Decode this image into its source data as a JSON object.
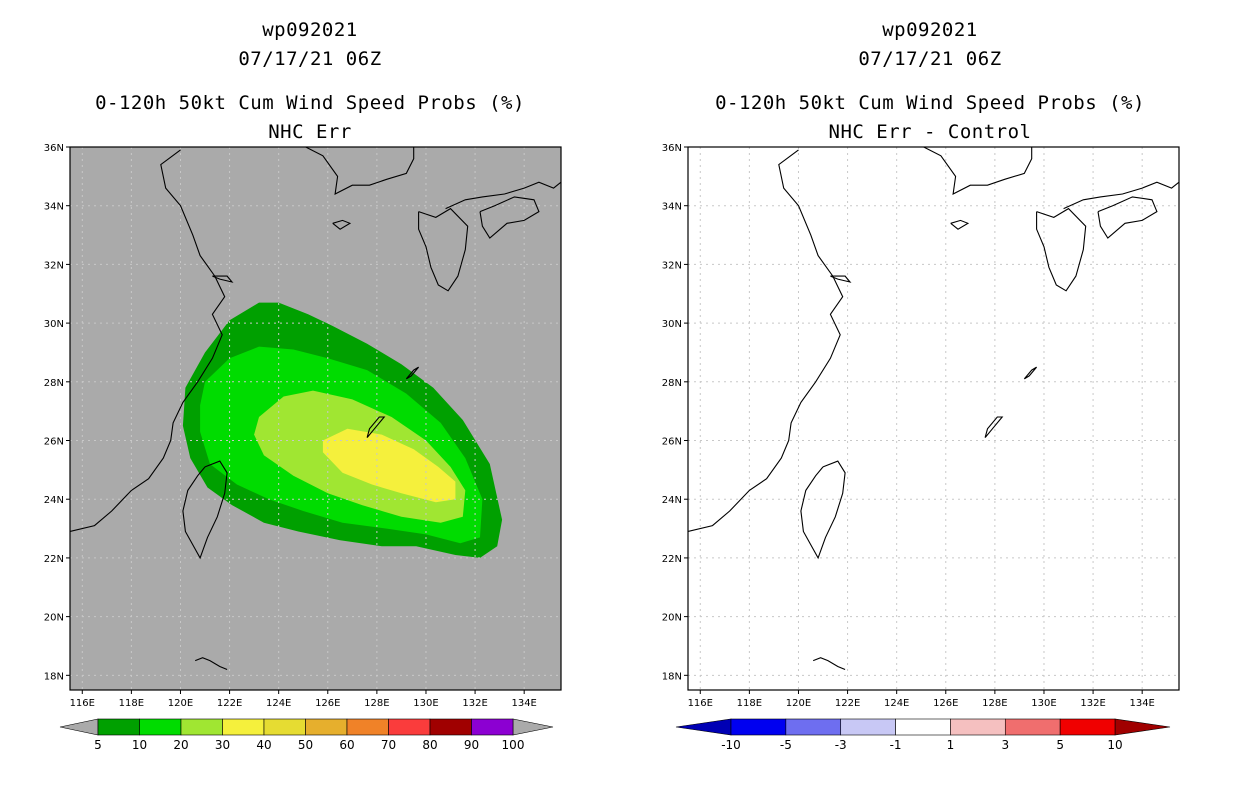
{
  "panels": [
    {
      "storm": "wp092021",
      "datetime": "07/17/21 06Z",
      "title": "0-120h 50kt Cum Wind Speed Probs (%)",
      "subtitle": "NHC Err",
      "background": "#aaaaaa"
    },
    {
      "storm": "wp092021",
      "datetime": "07/17/21 06Z",
      "title": "0-120h 50kt Cum Wind Speed Probs (%)",
      "subtitle": "NHC Err - Control",
      "background": "#ffffff"
    }
  ],
  "chart_data": [
    {
      "type": "heatmap",
      "panel": "left",
      "title": "0-120h 50kt Cum Wind Speed Probs (%)",
      "subtitle": "NHC Err",
      "xlim": [
        115.5,
        135.5
      ],
      "ylim": [
        17.5,
        36
      ],
      "x_ticks": [
        {
          "v": 116,
          "label": "116E"
        },
        {
          "v": 118,
          "label": "118E"
        },
        {
          "v": 120,
          "label": "120E"
        },
        {
          "v": 122,
          "label": "122E"
        },
        {
          "v": 124,
          "label": "124E"
        },
        {
          "v": 126,
          "label": "126E"
        },
        {
          "v": 128,
          "label": "128E"
        },
        {
          "v": 130,
          "label": "130E"
        },
        {
          "v": 132,
          "label": "132E"
        },
        {
          "v": 134,
          "label": "134E"
        }
      ],
      "y_ticks": [
        {
          "v": 18,
          "label": "18N"
        },
        {
          "v": 20,
          "label": "20N"
        },
        {
          "v": 22,
          "label": "22N"
        },
        {
          "v": 24,
          "label": "24N"
        },
        {
          "v": 26,
          "label": "26N"
        },
        {
          "v": 28,
          "label": "28N"
        },
        {
          "v": 30,
          "label": "30N"
        },
        {
          "v": 32,
          "label": "32N"
        },
        {
          "v": 34,
          "label": "34N"
        },
        {
          "v": 36,
          "label": "36N"
        }
      ],
      "grid": true,
      "contours": [
        {
          "level": "5",
          "color": "#00a000",
          "poly": [
            [
              120.2,
              27.8
            ],
            [
              121.0,
              29.0
            ],
            [
              122.0,
              30.1
            ],
            [
              123.2,
              30.7
            ],
            [
              124.0,
              30.7
            ],
            [
              125.2,
              30.3
            ],
            [
              126.2,
              29.9
            ],
            [
              127.6,
              29.3
            ],
            [
              129.0,
              28.6
            ],
            [
              130.3,
              27.8
            ],
            [
              131.5,
              26.7
            ],
            [
              132.6,
              25.2
            ],
            [
              133.1,
              23.3
            ],
            [
              132.9,
              22.4
            ],
            [
              132.2,
              22.0
            ],
            [
              131.2,
              22.1
            ],
            [
              129.6,
              22.4
            ],
            [
              128.2,
              22.4
            ],
            [
              126.5,
              22.6
            ],
            [
              124.8,
              22.9
            ],
            [
              123.4,
              23.2
            ],
            [
              122.1,
              23.8
            ],
            [
              121.1,
              24.4
            ],
            [
              120.4,
              25.4
            ],
            [
              120.1,
              26.5
            ]
          ]
        },
        {
          "level": "10",
          "color": "#00dc00",
          "poly": [
            [
              121.0,
              28.0
            ],
            [
              122.0,
              28.8
            ],
            [
              123.2,
              29.2
            ],
            [
              124.6,
              29.1
            ],
            [
              126.0,
              28.8
            ],
            [
              127.6,
              28.4
            ],
            [
              129.2,
              27.6
            ],
            [
              130.6,
              26.6
            ],
            [
              131.6,
              25.4
            ],
            [
              132.3,
              24.0
            ],
            [
              132.2,
              22.7
            ],
            [
              131.4,
              22.5
            ],
            [
              130.0,
              22.8
            ],
            [
              128.4,
              23.0
            ],
            [
              126.6,
              23.2
            ],
            [
              125.0,
              23.6
            ],
            [
              123.6,
              24.0
            ],
            [
              122.3,
              24.5
            ],
            [
              121.2,
              25.2
            ],
            [
              120.8,
              26.3
            ],
            [
              120.8,
              27.2
            ]
          ]
        },
        {
          "level": "20",
          "color": "#a0e632",
          "poly": [
            [
              123.2,
              26.8
            ],
            [
              124.2,
              27.5
            ],
            [
              125.4,
              27.7
            ],
            [
              127.0,
              27.4
            ],
            [
              128.6,
              26.8
            ],
            [
              130.0,
              26.0
            ],
            [
              131.0,
              25.1
            ],
            [
              131.6,
              24.3
            ],
            [
              131.5,
              23.4
            ],
            [
              130.6,
              23.2
            ],
            [
              129.0,
              23.4
            ],
            [
              127.4,
              23.8
            ],
            [
              126.0,
              24.2
            ],
            [
              124.6,
              24.8
            ],
            [
              123.4,
              25.5
            ],
            [
              123.0,
              26.2
            ]
          ]
        },
        {
          "level": "30",
          "color": "#f5f03c",
          "poly": [
            [
              125.8,
              26.0
            ],
            [
              126.8,
              26.4
            ],
            [
              128.2,
              26.2
            ],
            [
              129.5,
              25.7
            ],
            [
              130.5,
              25.1
            ],
            [
              131.2,
              24.6
            ],
            [
              131.2,
              24.0
            ],
            [
              130.4,
              23.9
            ],
            [
              129.0,
              24.2
            ],
            [
              127.8,
              24.5
            ],
            [
              126.6,
              24.9
            ],
            [
              125.8,
              25.6
            ]
          ]
        }
      ],
      "colorbar": {
        "labels": [
          "5",
          "10",
          "20",
          "30",
          "40",
          "50",
          "60",
          "70",
          "80",
          "90",
          "100"
        ],
        "colors": [
          "#00a000",
          "#00dc00",
          "#a0e632",
          "#f5f03c",
          "#e6dc32",
          "#e6af2d",
          "#f08228",
          "#fa3c3c",
          "#a00000",
          "#8c00d2"
        ]
      }
    },
    {
      "type": "heatmap",
      "panel": "right",
      "title": "0-120h 50kt Cum Wind Speed Probs (%)",
      "subtitle": "NHC Err - Control",
      "xlim": [
        115.5,
        135.5
      ],
      "ylim": [
        17.5,
        36
      ],
      "x_ticks": [
        {
          "v": 116,
          "label": "116E"
        },
        {
          "v": 118,
          "label": "118E"
        },
        {
          "v": 120,
          "label": "120E"
        },
        {
          "v": 122,
          "label": "122E"
        },
        {
          "v": 124,
          "label": "124E"
        },
        {
          "v": 126,
          "label": "126E"
        },
        {
          "v": 128,
          "label": "128E"
        },
        {
          "v": 130,
          "label": "130E"
        },
        {
          "v": 132,
          "label": "132E"
        },
        {
          "v": 134,
          "label": "134E"
        }
      ],
      "y_ticks": [
        {
          "v": 18,
          "label": "18N"
        },
        {
          "v": 20,
          "label": "20N"
        },
        {
          "v": 22,
          "label": "22N"
        },
        {
          "v": 24,
          "label": "24N"
        },
        {
          "v": 26,
          "label": "26N"
        },
        {
          "v": 28,
          "label": "28N"
        },
        {
          "v": 30,
          "label": "30N"
        },
        {
          "v": 32,
          "label": "32N"
        },
        {
          "v": 34,
          "label": "34N"
        },
        {
          "v": 36,
          "label": "36N"
        }
      ],
      "grid": true,
      "contours": [],
      "colorbar": {
        "labels": [
          "-10",
          "-5",
          "-3",
          "-1",
          "1",
          "3",
          "5",
          "10"
        ],
        "colors": [
          "#0000b4",
          "#0000f0",
          "#6e6ef0",
          "#c8c8f5",
          "#ffffff",
          "#f5c0c0",
          "#f06e6e",
          "#f00000",
          "#a00000"
        ]
      }
    }
  ],
  "coastline": {
    "china": [
      [
        115.5,
        22.9
      ],
      [
        116.5,
        23.1
      ],
      [
        117.2,
        23.6
      ],
      [
        118.0,
        24.3
      ],
      [
        118.7,
        24.7
      ],
      [
        119.3,
        25.4
      ],
      [
        119.6,
        26.0
      ],
      [
        119.7,
        26.6
      ],
      [
        120.1,
        27.3
      ],
      [
        120.7,
        28.0
      ],
      [
        121.3,
        28.8
      ],
      [
        121.7,
        29.6
      ],
      [
        121.3,
        30.3
      ],
      [
        121.8,
        30.9
      ],
      [
        121.4,
        31.6
      ],
      [
        120.8,
        32.3
      ],
      [
        120.5,
        33.0
      ],
      [
        120.0,
        34.0
      ],
      [
        119.4,
        34.6
      ],
      [
        119.2,
        35.4
      ],
      [
        120.0,
        35.9
      ]
    ],
    "korea": [
      [
        125.1,
        36.0
      ],
      [
        125.8,
        35.7
      ],
      [
        126.4,
        35.0
      ],
      [
        126.3,
        34.4
      ],
      [
        127.0,
        34.7
      ],
      [
        127.7,
        34.7
      ],
      [
        128.4,
        34.9
      ],
      [
        129.2,
        35.1
      ],
      [
        129.5,
        35.6
      ],
      [
        129.5,
        36.0
      ]
    ],
    "japan_main": [
      [
        130.8,
        33.9
      ],
      [
        131.6,
        34.2
      ],
      [
        132.3,
        34.3
      ],
      [
        133.2,
        34.4
      ],
      [
        134.0,
        34.6
      ],
      [
        134.6,
        34.8
      ],
      [
        135.2,
        34.6
      ],
      [
        135.5,
        34.8
      ]
    ],
    "kyushu": [
      [
        129.7,
        33.8
      ],
      [
        130.4,
        33.6
      ],
      [
        131.0,
        33.9
      ],
      [
        131.7,
        33.3
      ],
      [
        131.6,
        32.5
      ],
      [
        131.3,
        31.6
      ],
      [
        130.9,
        31.1
      ],
      [
        130.5,
        31.3
      ],
      [
        130.2,
        31.9
      ],
      [
        130.0,
        32.6
      ],
      [
        129.7,
        33.2
      ],
      [
        129.7,
        33.8
      ]
    ],
    "shikoku": [
      [
        132.2,
        33.8
      ],
      [
        132.8,
        34.0
      ],
      [
        133.6,
        34.3
      ],
      [
        134.4,
        34.2
      ],
      [
        134.6,
        33.8
      ],
      [
        134.0,
        33.5
      ],
      [
        133.3,
        33.4
      ],
      [
        132.6,
        32.9
      ],
      [
        132.3,
        33.3
      ],
      [
        132.2,
        33.8
      ]
    ],
    "taiwan": [
      [
        121.0,
        25.1
      ],
      [
        121.6,
        25.3
      ],
      [
        121.9,
        24.9
      ],
      [
        121.8,
        24.2
      ],
      [
        121.5,
        23.4
      ],
      [
        121.1,
        22.7
      ],
      [
        120.8,
        22.0
      ],
      [
        120.6,
        22.3
      ],
      [
        120.2,
        22.9
      ],
      [
        120.1,
        23.6
      ],
      [
        120.3,
        24.3
      ],
      [
        120.7,
        24.8
      ],
      [
        121.0,
        25.1
      ]
    ],
    "okinawa": [
      [
        127.6,
        26.1
      ],
      [
        127.9,
        26.4
      ],
      [
        128.3,
        26.8
      ],
      [
        128.1,
        26.8
      ],
      [
        127.7,
        26.4
      ],
      [
        127.6,
        26.1
      ]
    ],
    "amami": [
      [
        129.2,
        28.1
      ],
      [
        129.5,
        28.4
      ],
      [
        129.7,
        28.5
      ],
      [
        129.4,
        28.2
      ],
      [
        129.2,
        28.1
      ]
    ],
    "jeju": [
      [
        126.2,
        33.4
      ],
      [
        126.6,
        33.5
      ],
      [
        126.9,
        33.4
      ],
      [
        126.5,
        33.2
      ],
      [
        126.2,
        33.4
      ]
    ],
    "luzon": [
      [
        120.6,
        18.5
      ],
      [
        120.9,
        18.6
      ],
      [
        121.2,
        18.5
      ],
      [
        121.6,
        18.3
      ],
      [
        121.9,
        18.2
      ]
    ],
    "chongming": [
      [
        121.3,
        31.6
      ],
      [
        121.9,
        31.6
      ],
      [
        122.1,
        31.4
      ],
      [
        121.6,
        31.5
      ],
      [
        121.3,
        31.6
      ]
    ]
  }
}
